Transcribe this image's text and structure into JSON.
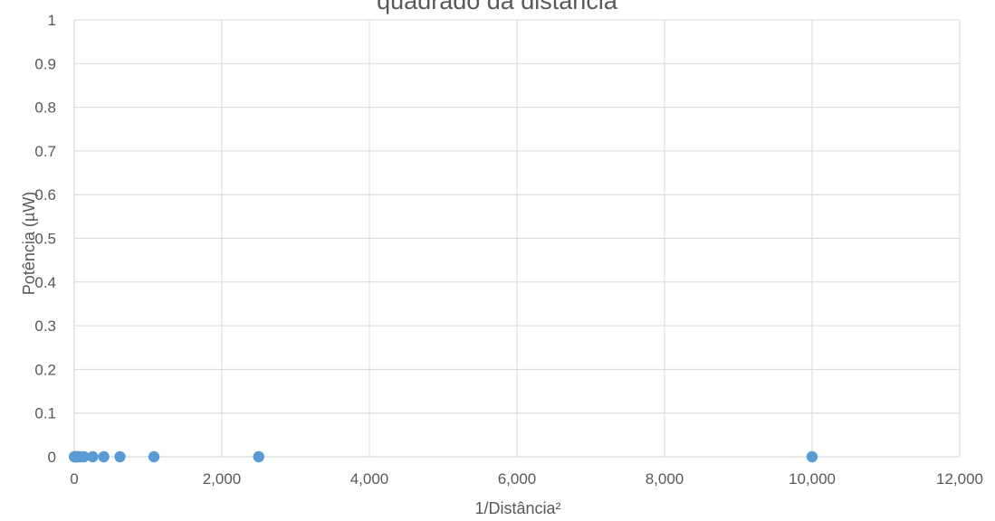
{
  "chart_data": {
    "type": "scatter",
    "title": "quadrado da distância",
    "xlabel": "1/Distância²",
    "ylabel": "Potência  (µW)",
    "xlim": [
      0,
      12000
    ],
    "ylim": [
      0,
      1
    ],
    "x_ticks": [
      "0",
      "2,000",
      "4,000",
      "6,000",
      "8,000",
      "10,000",
      "12,000"
    ],
    "y_ticks": [
      "0",
      "0.1",
      "0.2",
      "0.3",
      "0.4",
      "0.5",
      "0.6",
      "0.7",
      "0.8",
      "0.9",
      "1"
    ],
    "grid": true,
    "series": [
      {
        "color": "#5b9bd5",
        "points": [
          {
            "x": 1,
            "y": 0
          },
          {
            "x": 5,
            "y": 0
          },
          {
            "x": 10,
            "y": 0
          },
          {
            "x": 18,
            "y": 0
          },
          {
            "x": 28,
            "y": 0
          },
          {
            "x": 40,
            "y": 0
          },
          {
            "x": 60,
            "y": 0
          },
          {
            "x": 90,
            "y": 0
          },
          {
            "x": 130,
            "y": 0
          },
          {
            "x": 250,
            "y": 0
          },
          {
            "x": 400,
            "y": 0
          },
          {
            "x": 620,
            "y": 0
          },
          {
            "x": 1080,
            "y": 0
          },
          {
            "x": 2500,
            "y": 0
          },
          {
            "x": 10000,
            "y": 0
          }
        ]
      }
    ]
  }
}
